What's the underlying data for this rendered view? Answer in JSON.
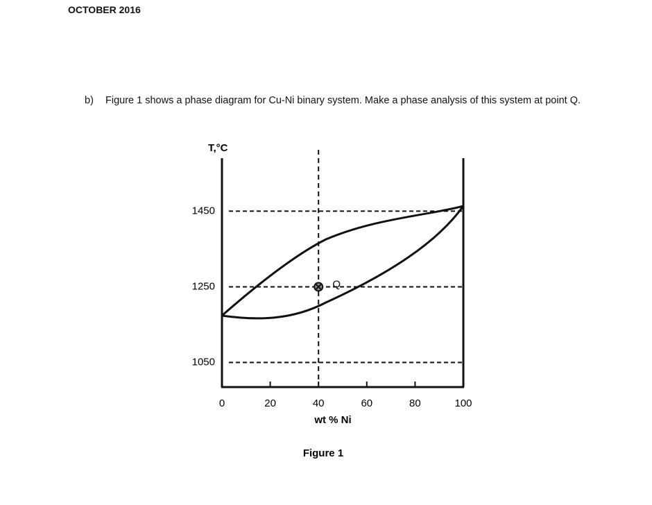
{
  "header": {
    "title": "OCTOBER 2016"
  },
  "question": {
    "label": "b)",
    "text": "Figure 1 shows a phase diagram for Cu-Ni binary system. Make a phase analysis of this system at point Q."
  },
  "chart_data": {
    "type": "phase-diagram",
    "y_label": "T,°C",
    "x_label": "wt % Ni",
    "xlim": [
      0,
      100
    ],
    "xticks": [
      0,
      20,
      40,
      60,
      80,
      100
    ],
    "ylim": [
      985,
      1590
    ],
    "yticks": [
      1450,
      1250,
      1050
    ],
    "point": {
      "label": "Q",
      "x": 40,
      "y": 1250
    },
    "caption": "Figure 1"
  }
}
